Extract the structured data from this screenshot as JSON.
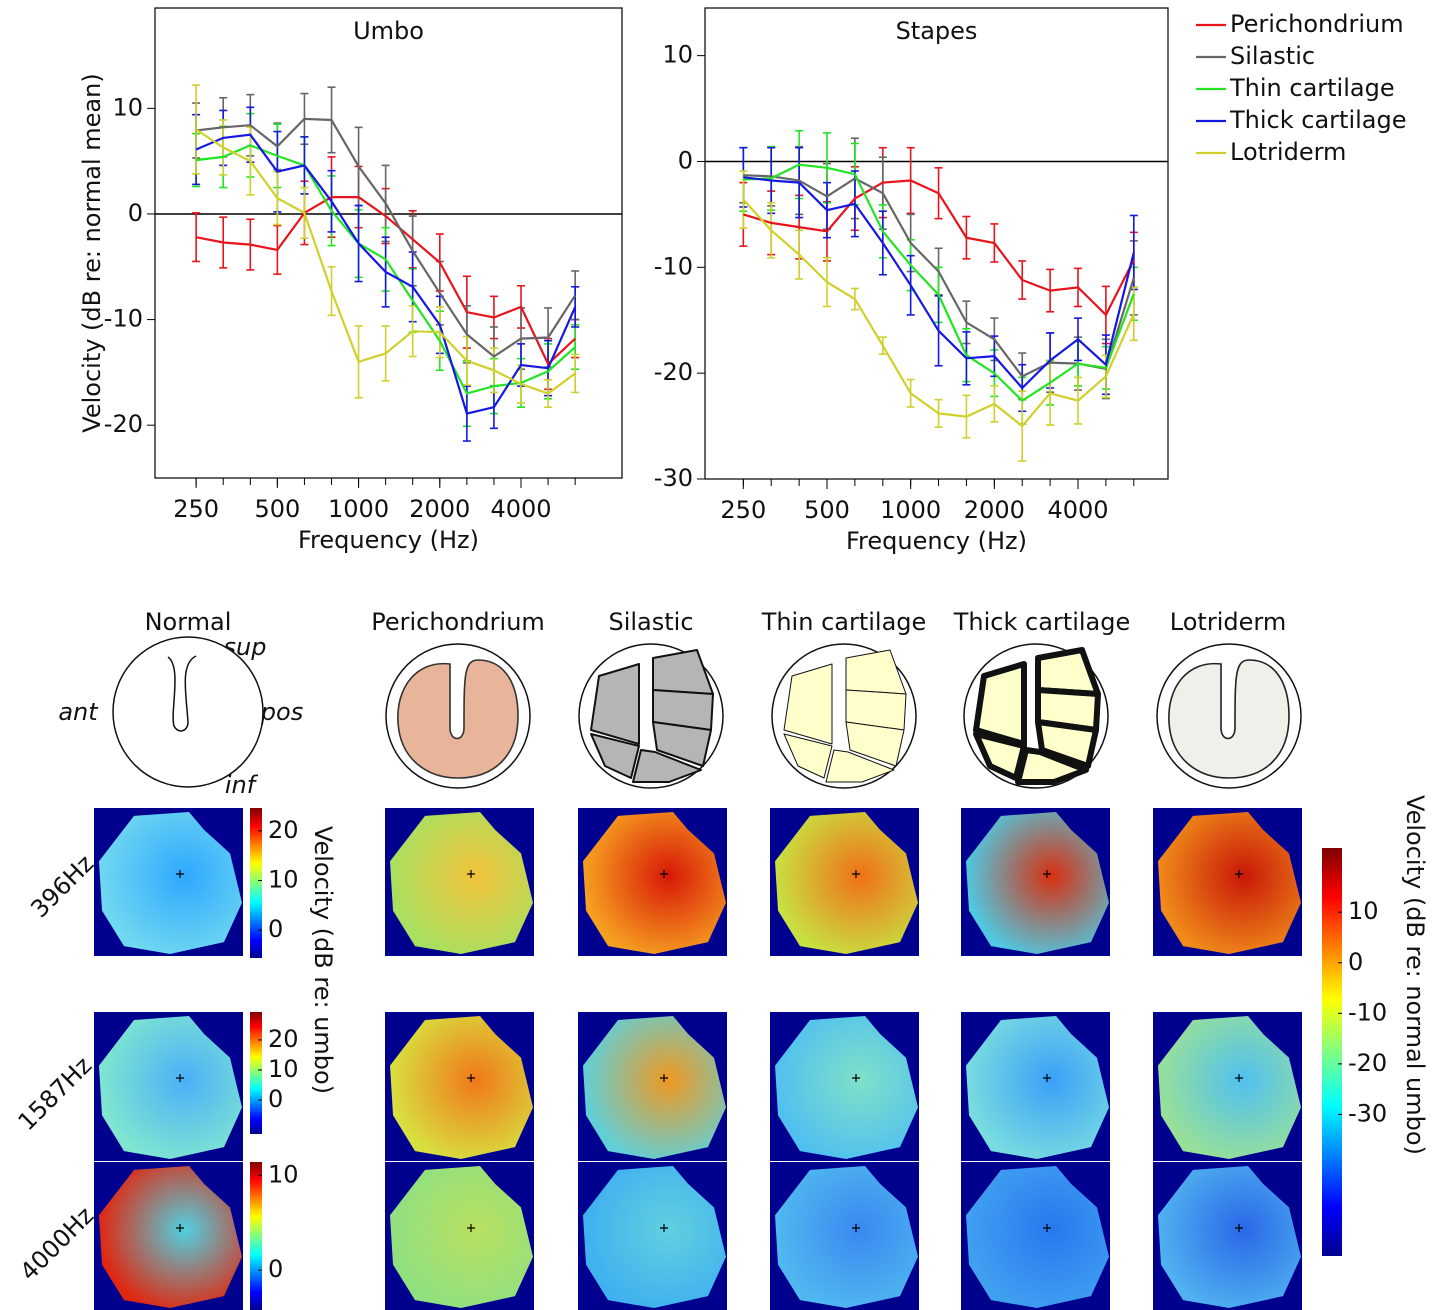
{
  "chart_data": [
    {
      "type": "line",
      "title": "Umbo",
      "xlabel": "Frequency (Hz)",
      "ylabel": "Velocity (dB re: normal mean)",
      "x": [
        250,
        315,
        397,
        500,
        630,
        794,
        1000,
        1260,
        1587,
        2000,
        2520,
        3175,
        4000,
        5040,
        6350
      ],
      "xscale": "log",
      "xlim": [
        176,
        9470
      ],
      "xticks": [
        250,
        500,
        1000,
        2000,
        4000
      ],
      "ylim": [
        -25,
        19.5
      ],
      "yticks": [
        -20,
        -10,
        0,
        10
      ],
      "reference_line": 0,
      "legend": "right",
      "series": [
        {
          "name": "Perichondrium",
          "color": "#e8141c",
          "values": [
            -2.2,
            -2.7,
            -2.9,
            -3.4,
            0.1,
            1.6,
            1.6,
            -0.2,
            -2.4,
            -4.6,
            -9.3,
            -9.8,
            -8.8,
            -14.2,
            -11.8
          ],
          "errors": [
            2.3,
            2.4,
            2.4,
            2.3,
            3.0,
            3.8,
            2.9,
            2.6,
            2.7,
            2.7,
            3.4,
            2.0,
            2.0,
            2.4,
            1.8
          ]
        },
        {
          "name": "Silastic",
          "color": "#666666",
          "values": [
            7.9,
            8.2,
            8.4,
            6.4,
            9.0,
            8.9,
            4.5,
            1.0,
            -3.5,
            -7.5,
            -11.4,
            -13.5,
            -11.8,
            -11.7,
            -7.7
          ],
          "errors": [
            2.6,
            2.8,
            2.9,
            2.2,
            2.4,
            3.1,
            3.7,
            3.6,
            3.3,
            3.0,
            2.7,
            2.8,
            2.9,
            2.8,
            2.3
          ]
        },
        {
          "name": "Thin cartilage",
          "color": "#22e522",
          "values": [
            5.1,
            5.4,
            6.5,
            5.5,
            4.6,
            0.3,
            -2.8,
            -4.3,
            -8.2,
            -12.0,
            -17.0,
            -16.3,
            -16.0,
            -14.9,
            -12.6
          ],
          "errors": [
            2.5,
            2.9,
            3.0,
            3.0,
            2.7,
            3.3,
            3.2,
            3.0,
            3.0,
            2.8,
            3.1,
            2.6,
            2.3,
            2.6,
            2.1
          ]
        },
        {
          "name": "Thick cartilage",
          "color": "#1518e0",
          "values": [
            6.1,
            7.2,
            7.5,
            4.0,
            4.6,
            1.2,
            -2.8,
            -5.5,
            -6.9,
            -10.5,
            -18.9,
            -18.3,
            -14.3,
            -14.6,
            -8.8
          ],
          "errors": [
            3.3,
            2.6,
            2.6,
            3.8,
            2.7,
            2.9,
            3.6,
            3.3,
            3.3,
            2.7,
            2.6,
            2.0,
            2.0,
            2.6,
            1.9
          ]
        },
        {
          "name": "Lotriderm",
          "color": "#cfd02b",
          "values": [
            8.0,
            6.3,
            5.0,
            1.5,
            0.1,
            -7.3,
            -14.0,
            -13.2,
            -11.1,
            -11.2,
            -13.9,
            -14.8,
            -16.1,
            -17.0,
            -15.1
          ],
          "errors": [
            4.2,
            2.6,
            3.2,
            2.5,
            2.4,
            2.3,
            3.4,
            2.6,
            2.4,
            2.4,
            2.3,
            2.1,
            1.8,
            1.3,
            1.8
          ]
        }
      ]
    },
    {
      "type": "line",
      "title": "Stapes",
      "xlabel": "Frequency (Hz)",
      "x": [
        250,
        315,
        397,
        500,
        630,
        794,
        1000,
        1260,
        1587,
        2000,
        2520,
        3175,
        4000,
        5040,
        6350
      ],
      "xscale": "log",
      "xlim": [
        182,
        8430
      ],
      "xticks": [
        250,
        500,
        1000,
        2000,
        4000
      ],
      "ylim": [
        -30,
        14.5
      ],
      "yticks": [
        -30,
        -20,
        -10,
        0,
        10
      ],
      "reference_line": 0,
      "series": [
        {
          "color": "#e8141c",
          "values": [
            -5.0,
            -5.8,
            -6.2,
            -6.6,
            -3.5,
            -2.0,
            -1.8,
            -3.0,
            -7.2,
            -7.7,
            -11.2,
            -12.2,
            -11.9,
            -14.5,
            -9.3
          ],
          "errors": [
            3.0,
            3.0,
            3.0,
            2.8,
            3.0,
            3.3,
            3.1,
            2.4,
            2.0,
            1.8,
            1.8,
            2.0,
            1.8,
            2.7,
            2.6
          ]
        },
        {
          "color": "#666666",
          "values": [
            -1.3,
            -1.4,
            -1.8,
            -3.3,
            -1.6,
            -3.0,
            -7.7,
            -10.4,
            -15.2,
            -16.8,
            -20.3,
            -19.0,
            -19.1,
            -19.6,
            -11.0
          ],
          "errors": [
            2.6,
            2.8,
            3.2,
            3.1,
            3.8,
            3.4,
            2.7,
            2.2,
            2.0,
            2.0,
            2.2,
            2.8,
            2.5,
            2.8,
            3.5
          ]
        },
        {
          "color": "#22e522",
          "values": [
            -1.7,
            -1.6,
            -0.3,
            -0.6,
            -1.2,
            -6.6,
            -9.8,
            -12.6,
            -18.3,
            -20.0,
            -22.6,
            -20.9,
            -19.1,
            -19.5,
            -12.5
          ],
          "errors": [
            3.0,
            3.0,
            3.2,
            3.3,
            2.9,
            2.5,
            2.4,
            2.6,
            2.5,
            2.2,
            2.2,
            2.1,
            2.1,
            2.0,
            2.5
          ]
        },
        {
          "color": "#1518e0",
          "values": [
            -1.5,
            -1.8,
            -2.0,
            -4.6,
            -4.0,
            -7.7,
            -11.7,
            -16.0,
            -18.6,
            -18.4,
            -21.4,
            -18.8,
            -16.8,
            -19.2,
            -8.6
          ],
          "errors": [
            2.8,
            3.1,
            3.3,
            2.6,
            3.1,
            3.0,
            2.8,
            3.3,
            2.5,
            1.9,
            2.2,
            2.6,
            2.0,
            2.8,
            3.5
          ]
        },
        {
          "color": "#cfd02b",
          "values": [
            -3.6,
            -6.5,
            -8.8,
            -11.4,
            -13.0,
            -17.4,
            -21.9,
            -23.8,
            -24.1,
            -22.9,
            -25.0,
            -21.9,
            -22.6,
            -20.3,
            -14.4
          ],
          "errors": [
            2.7,
            2.6,
            2.3,
            2.3,
            1.0,
            0.8,
            1.3,
            1.3,
            2.0,
            1.7,
            3.3,
            3.0,
            2.2,
            2.0,
            2.5
          ]
        }
      ]
    }
  ],
  "maps": {
    "columns": [
      "Normal",
      "Perichondrium",
      "Silastic",
      "Thin cartilage",
      "Thick cartilage",
      "Lotriderm"
    ],
    "rows": [
      "396Hz",
      "1587Hz",
      "4000Hz"
    ],
    "orientation": [
      "sup",
      "ant",
      "pos",
      "inf"
    ],
    "colorbar_title": "Velocity (dB re: umbo)",
    "colorbars": [
      {
        "ylim": [
          -5.6,
          24.6
        ],
        "yticks": [
          0,
          10,
          20
        ]
      },
      {
        "ylim": [
          -11.3,
          29.3
        ],
        "yticks": [
          0,
          10,
          20
        ]
      },
      {
        "ylim": [
          -4.2,
          11.4
        ],
        "yticks": [
          0,
          10
        ]
      }
    ],
    "main_colorbar": {
      "title": "Velocity (dB re: normal umbo)",
      "ylim": [
        -58,
        22.7
      ],
      "yticks": [
        -30,
        -20,
        -10,
        0,
        10
      ]
    }
  }
}
